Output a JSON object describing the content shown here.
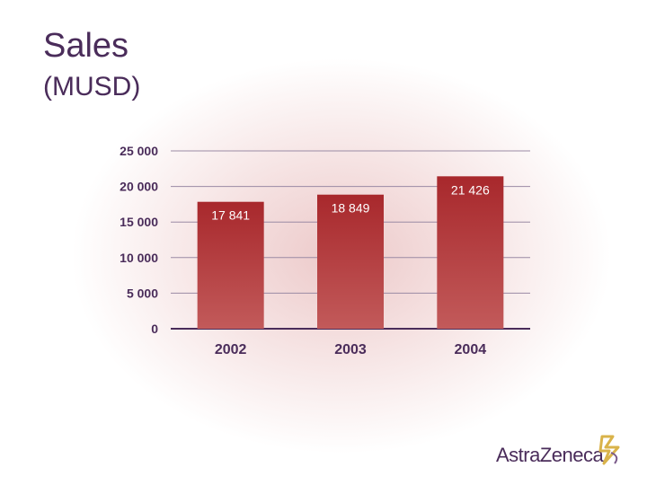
{
  "slide": {
    "title": "Sales",
    "subtitle": "(MUSD)"
  },
  "chart_data": {
    "type": "bar",
    "categories": [
      "2002",
      "2003",
      "2004"
    ],
    "values": [
      17841,
      18849,
      21426
    ],
    "value_labels": [
      "17 841",
      "18 849",
      "21 426"
    ],
    "ylim": [
      0,
      25000
    ],
    "yticks": [
      0,
      5000,
      10000,
      15000,
      20000,
      25000
    ],
    "ytick_labels": [
      "0",
      "5 000",
      "10 000",
      "15 000",
      "20 000",
      "25 000"
    ],
    "grid": true,
    "legend": "none",
    "bar_color": "#b03a3a"
  },
  "branding": {
    "logo_text": "AstraZeneca",
    "logo_color": "#4a2c5a",
    "logo_mark_color": "#d9b34a",
    "icon": "astrazeneca-logo-icon"
  }
}
